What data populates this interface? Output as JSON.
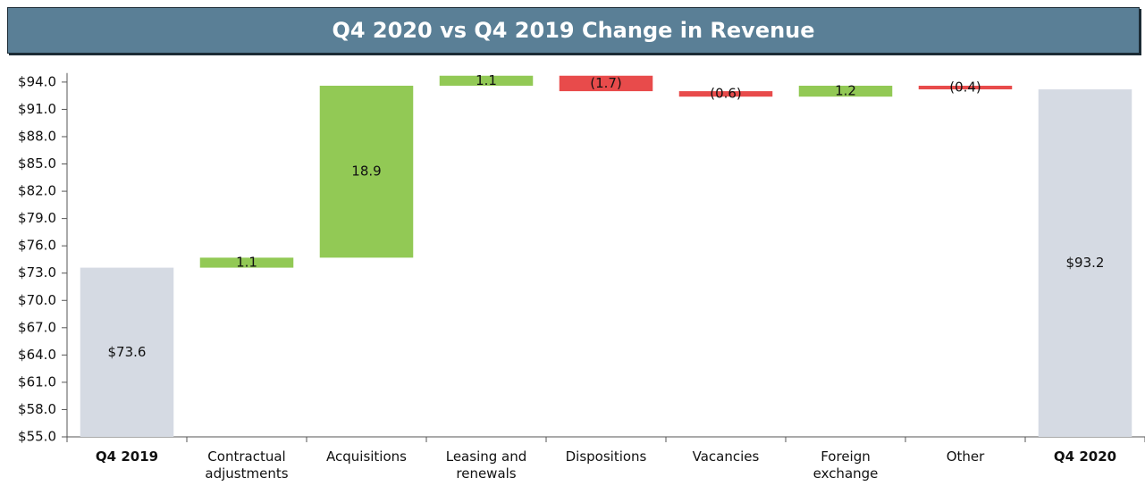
{
  "chart_data": {
    "type": "waterfall",
    "title": "Q4 2020 vs Q4 2019 Change in Revenue",
    "categories": [
      "Q4 2019",
      "Contractual adjustments",
      "Acquisitions",
      "Leasing and renewals",
      "Dispositions",
      "Vacancies",
      "Foreign exchange",
      "Other",
      "Q4 2020"
    ],
    "values": [
      73.6,
      1.1,
      18.9,
      1.1,
      -1.7,
      -0.6,
      1.2,
      -0.4,
      93.2
    ],
    "value_labels": [
      "$73.6",
      "1.1",
      "18.9",
      "1.1",
      "(1.7)",
      "(0.6)",
      "1.2",
      "(0.4)",
      "$93.2"
    ],
    "is_total": [
      true,
      false,
      false,
      false,
      false,
      false,
      false,
      false,
      true
    ],
    "colors": {
      "total": "#d5dae3",
      "increase": "#92c955",
      "decrease": "#e84b4b"
    },
    "ylim": [
      55,
      95
    ],
    "yticks": [
      {
        "value": 55,
        "label": "$55.0"
      },
      {
        "value": 58,
        "label": "$58.0"
      },
      {
        "value": 61,
        "label": "$61.0"
      },
      {
        "value": 64,
        "label": "$64.0"
      },
      {
        "value": 67,
        "label": "$67.0"
      },
      {
        "value": 70,
        "label": "$70.0"
      },
      {
        "value": 73,
        "label": "$73.0"
      },
      {
        "value": 76,
        "label": "$76.0"
      },
      {
        "value": 79,
        "label": "$79.0"
      },
      {
        "value": 82,
        "label": "$82.0"
      },
      {
        "value": 85,
        "label": "$85.0"
      },
      {
        "value": 88,
        "label": "$88.0"
      },
      {
        "value": 91,
        "label": "$91.0"
      },
      {
        "value": 94,
        "label": "$94.0"
      }
    ]
  }
}
